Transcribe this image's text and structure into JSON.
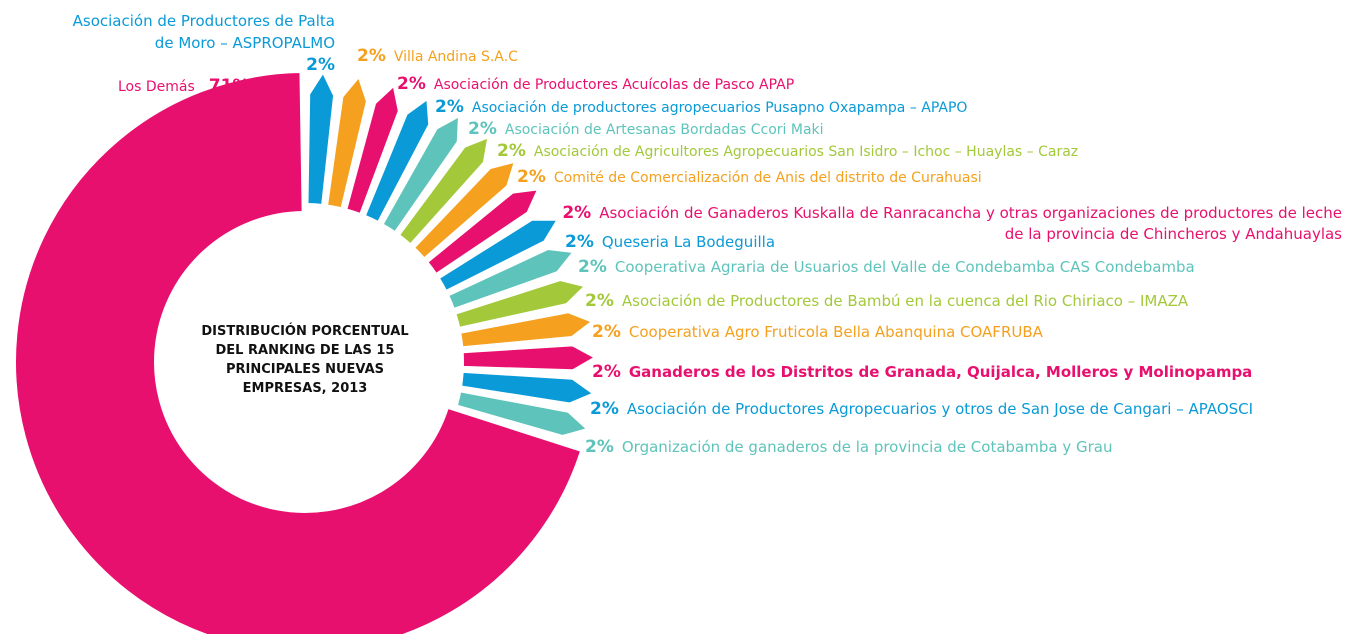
{
  "chart_data": {
    "type": "pie",
    "donut": true,
    "title": "DISTRIBUCIÓN PORCENTUAL DEL RANKING DE LAS 15 PRINCIPALES NUEVAS EMPRESAS, 2013",
    "categories": [
      "Los Demás",
      "Asociación de Productores de Palta de Moro – ASPROPALMO",
      "Villa Andina S.A.C",
      "Asociación de Productores Acuícolas de Pasco APAP",
      "Asociación de productores agropecuarios Pusapno Oxapampa – APAPO",
      "Asociación de Artesanas Bordadas Ccori Maki",
      "Asociación de Agricultores Agropecuarios San Isidro – Ichoc – Huaylas – Caraz",
      "Comité de Comercialización de Anis del distrito de Curahuasi",
      "Asociación de Ganaderos Kuskalla de Ranracancha y otras organizaciones de productores de leche de la provincia de Chincheros y Andahuaylas",
      "Queseria La Bodeguilla",
      "Cooperativa Agraria de Usuarios del Valle de Condebamba CAS Condebamba",
      "Asociación de Productores de Bambú en la cuenca del Rio Chiriaco – IMAZA",
      "Cooperativa Agro Fruticola Bella Abanquina COAFRUBA",
      "Ganaderos de los Distritos de Granada, Quijalca, Molleros y Molinopampa",
      "Asociación de Productores Agropecuarios y otros de San Jose de Cangari – APAOSCI",
      "Organización de ganaderos de la provincia de Cotabamba y Grau"
    ],
    "values": [
      71,
      2,
      2,
      2,
      2,
      2,
      2,
      2,
      2,
      2,
      2,
      2,
      2,
      2,
      2,
      2
    ],
    "value_labels": [
      "71%",
      "2%",
      "2%",
      "2%",
      "2%",
      "2%",
      "2%",
      "2%",
      "2%",
      "2%",
      "2%",
      "2%",
      "2%",
      "2%",
      "2%",
      "2%"
    ],
    "colors": [
      "#e8106e",
      "#0a9ad7",
      "#f5a01e",
      "#e8106e",
      "#0a9ad7",
      "#5ec4bb",
      "#a3c93a",
      "#f5a01e",
      "#e8106e",
      "#0a9ad7",
      "#5ec4bb",
      "#a3c93a",
      "#f5a01e",
      "#e8106e",
      "#0a9ad7",
      "#5ec4bb"
    ]
  }
}
